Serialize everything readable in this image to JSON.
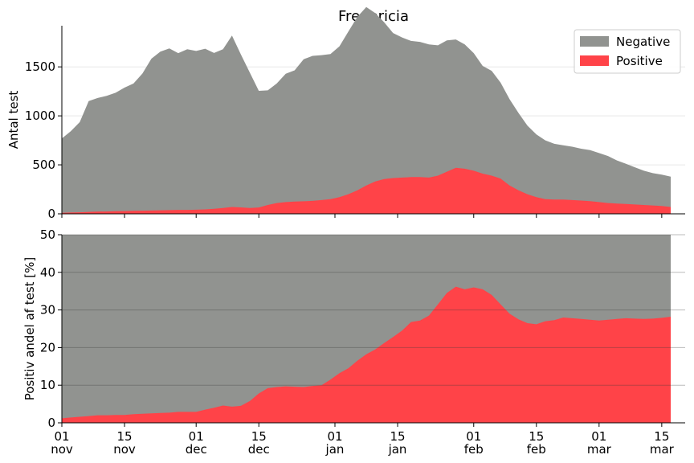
{
  "chart_data": [
    {
      "type": "area",
      "title": "Fredericia",
      "ylabel": "Antal test",
      "xlabel": "",
      "ylim": [
        0,
        1920
      ],
      "yticks": [
        0,
        500,
        1000,
        1500
      ],
      "grid": true,
      "legend_position": "top-right",
      "x_days": [
        0,
        2,
        4,
        6,
        8,
        10,
        12,
        14,
        16,
        18,
        20,
        22,
        24,
        26,
        28,
        30,
        32,
        34,
        36,
        38,
        40,
        42,
        44,
        46,
        48,
        50,
        52,
        54,
        56,
        58,
        60,
        62,
        64,
        66,
        68,
        70,
        72,
        74,
        76,
        78,
        80,
        82,
        84,
        86,
        88,
        90,
        92,
        94,
        96,
        98,
        100,
        102,
        104,
        106,
        108,
        110,
        112,
        114,
        116,
        118,
        120,
        122,
        124,
        126,
        128,
        130,
        132,
        134,
        136
      ],
      "series": [
        {
          "name": "Negative",
          "color": "#919390",
          "values": [
            760,
            830,
            920,
            1130,
            1160,
            1180,
            1210,
            1260,
            1300,
            1400,
            1550,
            1620,
            1650,
            1600,
            1640,
            1620,
            1640,
            1590,
            1620,
            1750,
            1560,
            1380,
            1190,
            1170,
            1220,
            1310,
            1340,
            1450,
            1480,
            1480,
            1480,
            1540,
            1660,
            1770,
            1820,
            1720,
            1600,
            1480,
            1430,
            1390,
            1380,
            1360,
            1330,
            1340,
            1310,
            1270,
            1200,
            1100,
            1070,
            980,
            880,
            790,
            700,
            640,
            600,
            570,
            555,
            545,
            530,
            520,
            500,
            480,
            440,
            410,
            380,
            350,
            330,
            320,
            310
          ]
        },
        {
          "name": "Positive",
          "color": "#ff4348",
          "values": [
            10,
            13,
            16,
            20,
            22,
            24,
            26,
            28,
            30,
            32,
            34,
            36,
            38,
            40,
            40,
            42,
            45,
            52,
            60,
            70,
            66,
            60,
            65,
            90,
            110,
            120,
            125,
            128,
            132,
            140,
            150,
            170,
            200,
            240,
            290,
            330,
            355,
            365,
            370,
            375,
            375,
            370,
            390,
            430,
            470,
            460,
            440,
            410,
            390,
            360,
            290,
            240,
            200,
            170,
            150,
            145,
            145,
            140,
            135,
            130,
            120,
            110,
            105,
            100,
            95,
            90,
            85,
            80,
            70
          ]
        }
      ]
    },
    {
      "type": "area",
      "title": "",
      "ylabel": "Positiv andel af test [%]",
      "xlabel": "",
      "ylim": [
        0,
        50
      ],
      "yticks": [
        0,
        10,
        20,
        30,
        40,
        50
      ],
      "grid": true,
      "x_days": [
        0,
        2,
        4,
        6,
        8,
        10,
        12,
        14,
        16,
        18,
        20,
        22,
        24,
        26,
        28,
        30,
        32,
        34,
        36,
        38,
        40,
        42,
        44,
        46,
        48,
        50,
        52,
        54,
        56,
        58,
        60,
        62,
        64,
        66,
        68,
        70,
        72,
        74,
        76,
        78,
        80,
        82,
        84,
        86,
        88,
        90,
        92,
        94,
        96,
        98,
        100,
        102,
        104,
        106,
        108,
        110,
        112,
        114,
        116,
        118,
        120,
        122,
        124,
        126,
        128,
        130,
        132,
        134,
        136
      ],
      "series": [
        {
          "name": "Negative",
          "color": "#919390",
          "values": [
            50,
            50,
            50,
            50,
            50,
            50,
            50,
            50,
            50,
            50,
            50,
            50,
            50,
            50,
            50,
            50,
            50,
            50,
            50,
            50,
            50,
            50,
            50,
            50,
            50,
            50,
            50,
            50,
            50,
            50,
            50,
            50,
            50,
            50,
            50,
            50,
            50,
            50,
            50,
            50,
            50,
            50,
            50,
            50,
            50,
            50,
            50,
            50,
            50,
            50,
            50,
            50,
            50,
            50,
            50,
            50,
            50,
            50,
            50,
            50,
            50,
            50,
            50,
            50,
            50,
            50,
            50,
            50,
            50
          ]
        },
        {
          "name": "Positive",
          "color": "#ff4348",
          "values": [
            1.2,
            1.4,
            1.6,
            1.8,
            2.0,
            2.0,
            2.1,
            2.1,
            2.3,
            2.4,
            2.5,
            2.6,
            2.7,
            2.9,
            2.9,
            2.9,
            3.5,
            4.0,
            4.6,
            4.3,
            4.5,
            5.8,
            7.8,
            9.2,
            9.5,
            9.7,
            9.6,
            9.5,
            9.8,
            10.0,
            11.5,
            13.2,
            14.5,
            16.5,
            18.2,
            19.5,
            21.2,
            22.8,
            24.5,
            26.8,
            27.2,
            28.5,
            31.5,
            34.5,
            36.2,
            35.5,
            36.0,
            35.5,
            34.0,
            31.5,
            29.0,
            27.5,
            26.5,
            26.2,
            27.0,
            27.3,
            28.0,
            27.8,
            27.6,
            27.4,
            27.2,
            27.4,
            27.6,
            27.8,
            27.7,
            27.6,
            27.7,
            27.9,
            28.2
          ]
        }
      ]
    }
  ],
  "x_axis": {
    "start": "01 nov",
    "end": "16 mar",
    "ticks": [
      {
        "day": 0,
        "line1": "01",
        "line2": "nov"
      },
      {
        "day": 14,
        "line1": "15",
        "line2": "nov"
      },
      {
        "day": 30,
        "line1": "01",
        "line2": "dec"
      },
      {
        "day": 44,
        "line1": "15",
        "line2": "dec"
      },
      {
        "day": 61,
        "line1": "01",
        "line2": "jan"
      },
      {
        "day": 75,
        "line1": "15",
        "line2": "jan"
      },
      {
        "day": 92,
        "line1": "01",
        "line2": "feb"
      },
      {
        "day": 106,
        "line1": "15",
        "line2": "feb"
      },
      {
        "day": 120,
        "line1": "01",
        "line2": "mar"
      },
      {
        "day": 134,
        "line1": "15",
        "line2": "mar"
      }
    ]
  }
}
